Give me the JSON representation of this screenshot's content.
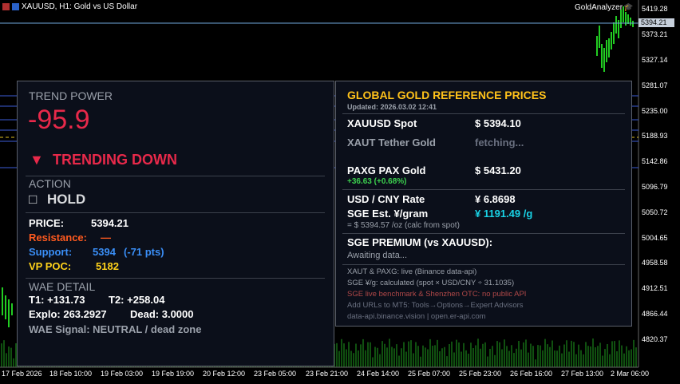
{
  "window": {
    "title": "XAUUSD, H1:  Gold vs US Dollar",
    "indicator": "GoldAnalyzer"
  },
  "price_axis": {
    "current_price_tag": "5394.21",
    "labels": [
      "5419.28",
      "5373.21",
      "5327.14",
      "5281.07",
      "5235.00",
      "5188.93",
      "5142.86",
      "5096.79",
      "5050.72",
      "5004.65",
      "4958.58",
      "4912.51",
      "4866.44",
      "4820.37"
    ]
  },
  "time_axis": {
    "labels": [
      "17 Feb 2026",
      "18 Feb 10:00",
      "19 Feb 03:00",
      "19 Feb 19:00",
      "20 Feb 12:00",
      "23 Feb 05:00",
      "23 Feb 21:00",
      "24 Feb 14:00",
      "25 Feb 07:00",
      "25 Feb 23:00",
      "26 Feb 16:00",
      "27 Feb 13:00",
      "2 Mar 06:00"
    ]
  },
  "trend_panel": {
    "trend_power_label": "TREND POWER",
    "trend_power_value": "-95.9",
    "trend_arrow": "▼",
    "trend_state": "TRENDING DOWN",
    "action_label": "ACTION",
    "action_icon": "□",
    "action_value": "HOLD",
    "price_label": "PRICE:",
    "price_value": "5394.21",
    "resistance_label": "Resistance:",
    "resistance_value": "—",
    "support_label": "Support:",
    "support_value": "5394",
    "support_delta": "(-71 pts)",
    "vp_label": "VP  POC:",
    "vp_value": "5182",
    "wae_label": "WAE DETAIL",
    "t1": "T1: +131.73",
    "t2": "T2: +258.04",
    "explo": "Explo: 263.2927",
    "dead": "Dead: 3.0000",
    "wae_signal": "WAE Signal:  NEUTRAL / dead zone",
    "colors": {
      "trend_value": "#e8294a",
      "resistance": "#ff5a1f",
      "support": "#3a8ef6",
      "poc": "#ffd21a"
    }
  },
  "reference_panel": {
    "heading": "GLOBAL GOLD REFERENCE PRICES",
    "updated": "Updated: 2026.03.02 12:41",
    "xauusd_label": "XAUUSD  Spot",
    "xauusd_value": "$ 5394.10",
    "xaut_label": "XAUT  Tether Gold",
    "xaut_value": "fetching...",
    "paxg_label": "PAXG  PAX Gold",
    "paxg_value": "$ 5431.20",
    "paxg_change": "+36.63  (+0.68%)",
    "usdcny_label": "USD / CNY  Rate",
    "usdcny_value": "¥ 6.8698",
    "sge_label": "SGE  Est. ¥/gram",
    "sge_value": "¥ 1191.49 /g",
    "sge_note": "= $ 5394.57 /oz  (calc from spot)",
    "premium_label": "SGE PREMIUM  (vs XAUUSD):",
    "premium_value": "Awaiting data...",
    "note1": "XAUT & PAXG:  live  (Binance data-api)",
    "note2": "SGE ¥/g:  calculated  (spot × USD/CNY ÷ 31.1035)",
    "note3": "SGE live benchmark & Shenzhen OTC: no public API",
    "note4": "Add URLs to MT5: Tools→Options→Expert Advisors",
    "note5": "data-api.binance.vision  |  open.er-api.com",
    "colors": {
      "heading": "#ffc21a",
      "change": "#3ccf4e",
      "sge_value": "#19d3e6",
      "note_warn": "#b04848"
    }
  }
}
